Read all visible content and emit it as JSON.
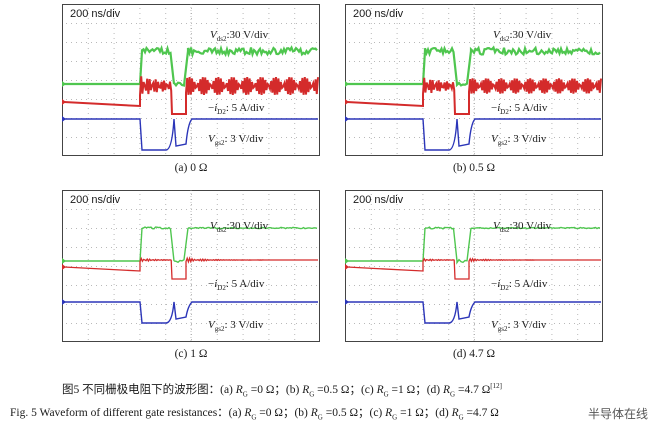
{
  "panels": [
    {
      "time_div": "200 ns/div",
      "vds_sub": "ds2",
      "vds_scale": ":30 V/div",
      "id_sub": "D2",
      "id_scale": ": 5 A/div",
      "vgs_sub": "gs2",
      "vgs_scale": ": 3 V/div",
      "label": "(a) 0 Ω",
      "ringing": 1.0
    },
    {
      "time_div": "200 ns/div",
      "vds_sub": "ds2",
      "vds_scale": ":30 V/div",
      "id_sub": "D2",
      "id_scale": ": 5 A/div",
      "vgs_sub": "gs2",
      "vgs_scale": ": 3 V/div",
      "label": "(b) 0.5 Ω",
      "ringing": 0.85
    },
    {
      "time_div": "200 ns/div",
      "vds_sub": "ds2",
      "vds_scale": ":30 V/div",
      "id_sub": "D2",
      "id_scale": ": 5 A/div",
      "vgs_sub": "gs2",
      "vgs_scale": ": 3 V/div",
      "label": "(c) 1 Ω",
      "ringing": 0.35
    },
    {
      "time_div": "200 ns/div",
      "vds_sub": "ds2",
      "vds_scale": ":30 V/div",
      "id_sub": "D2",
      "id_scale": ": 5 A/div",
      "vgs_sub": "gs2",
      "vgs_scale": ": 3 V/div",
      "label": "(d) 4.7 Ω",
      "ringing": 0.25
    }
  ],
  "symbols": {
    "V": "V",
    "i": "i",
    "minus": "−"
  },
  "caption_cn": {
    "prefix": "图5    不同栅极电阻下的波形图：(a) ",
    "a": " =0 Ω；(b) ",
    "b": " =0.5 Ω；(c) ",
    "c": " =1 Ω；(d) ",
    "d": " =4.7 Ω",
    "ref": "[12]",
    "R": "R",
    "G": "G"
  },
  "caption_en": {
    "prefix": "Fig. 5    Waveform of different gate resistances：(a) ",
    "a": " =0 Ω；(b) ",
    "b": " =0.5 Ω；(c) ",
    "c": " =1 Ω；(d) ",
    "d": " =4.7 Ω",
    "R": "R",
    "G": "G"
  },
  "watermark": "半导体在线",
  "colors": {
    "vds": "#4fc64f",
    "id": "#d42b2b",
    "vgs": "#2b35b8",
    "screen_bg": "#ffffff",
    "grid": "#b9b9b9"
  }
}
